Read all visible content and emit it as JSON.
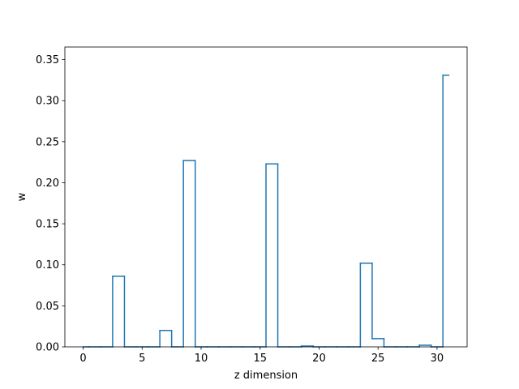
{
  "chart_data": {
    "type": "step",
    "title": "",
    "xlabel": "z dimension",
    "ylabel": "w",
    "xlim": [
      -1.55,
      32.55
    ],
    "ylim": [
      0.0,
      0.3654
    ],
    "xticks": [
      0,
      5,
      10,
      15,
      20,
      25,
      30
    ],
    "yticks": [
      0.0,
      0.05,
      0.1,
      0.15,
      0.2,
      0.25,
      0.3,
      0.35
    ],
    "ytick_labels": [
      "0.00",
      "0.05",
      "0.10",
      "0.15",
      "0.20",
      "0.25",
      "0.30",
      "0.35"
    ],
    "grid": false,
    "series": [
      {
        "color": "#1f77b4",
        "step_where": "mid",
        "x": [
          0,
          1,
          2,
          3,
          4,
          5,
          6,
          7,
          8,
          9,
          10,
          11,
          12,
          13,
          14,
          15,
          16,
          17,
          18,
          19,
          20,
          21,
          22,
          23,
          24,
          25,
          26,
          27,
          28,
          29,
          30,
          31
        ],
        "values": [
          0.0,
          0.0,
          0.0,
          0.086,
          0.0,
          0.0,
          0.0,
          0.02,
          0.0,
          0.227,
          0.0,
          0.0,
          0.0,
          0.0,
          0.0,
          0.0,
          0.223,
          0.0,
          0.0,
          0.001,
          0.0,
          0.0,
          0.0,
          0.0,
          0.102,
          0.01,
          0.0,
          0.0,
          0.0,
          0.002,
          0.0,
          0.331
        ]
      }
    ]
  }
}
